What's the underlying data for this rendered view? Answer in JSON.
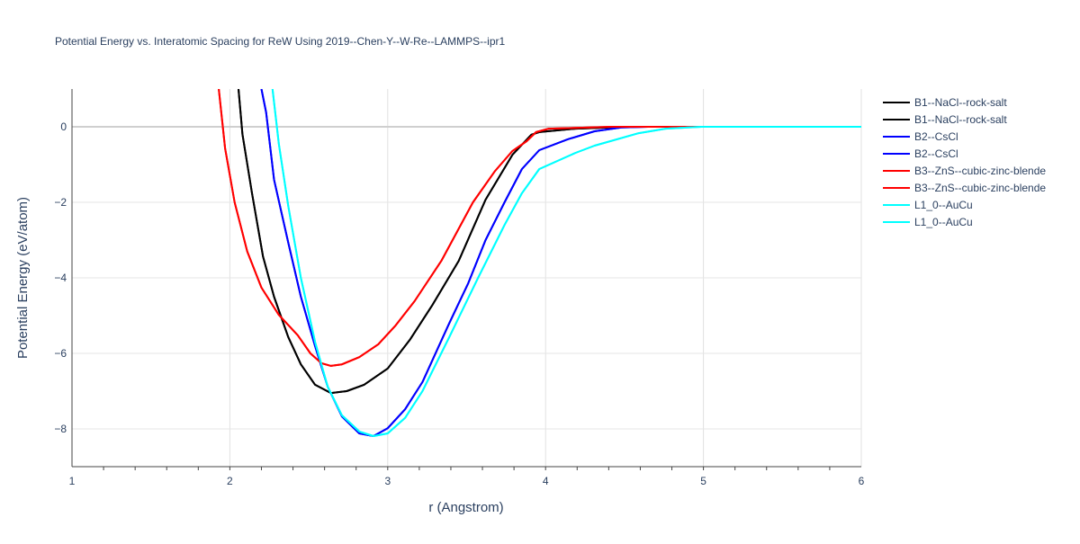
{
  "chart_data": {
    "type": "line",
    "title": "Potential Energy vs. Interatomic Spacing for ReW Using 2019--Chen-Y--W-Re--LAMMPS--ipr1",
    "xlabel": "r (Angstrom)",
    "ylabel": "Potential Energy (eV/atom)",
    "xlim": [
      1,
      6
    ],
    "ylim": [
      -9,
      1
    ],
    "xticks": [
      1,
      2,
      3,
      4,
      5,
      6
    ],
    "yticks": [
      0,
      -2,
      -4,
      -6,
      -8
    ],
    "ytick_labels": [
      "0",
      "−2",
      "−4",
      "−6",
      "−8"
    ],
    "grid": true,
    "legend_position": "right",
    "series": [
      {
        "name": "B1--NaCl--rock-salt",
        "color": "#000000",
        "x": [
          2.055,
          2.08,
          2.14,
          2.21,
          2.28,
          2.37,
          2.45,
          2.54,
          2.64,
          2.74,
          2.85,
          3.0,
          3.14,
          3.28,
          3.45,
          3.62,
          3.79,
          3.91,
          3.96,
          4.19,
          4.53,
          6.0
        ],
        "y": [
          1,
          -0.2,
          -1.76,
          -3.43,
          -4.5,
          -5.57,
          -6.29,
          -6.83,
          -7.05,
          -7.0,
          -6.83,
          -6.4,
          -5.64,
          -4.74,
          -3.55,
          -1.93,
          -0.74,
          -0.21,
          -0.14,
          -0.05,
          0,
          0
        ]
      },
      {
        "name": "B1--NaCl--rock-salt",
        "color": "#000000",
        "x": [
          2.055,
          2.08,
          2.14,
          2.21,
          2.28,
          2.37,
          2.45,
          2.54,
          2.64,
          2.74,
          2.85,
          3.0,
          3.14,
          3.28,
          3.45,
          3.62,
          3.79,
          3.91,
          3.96,
          4.19,
          4.53,
          6.0
        ],
        "y": [
          1,
          -0.2,
          -1.76,
          -3.43,
          -4.5,
          -5.57,
          -6.29,
          -6.83,
          -7.05,
          -7.0,
          -6.83,
          -6.4,
          -5.64,
          -4.74,
          -3.55,
          -1.93,
          -0.74,
          -0.21,
          -0.14,
          -0.05,
          0,
          0
        ]
      },
      {
        "name": "B2--CsCl",
        "color": "#0000ff",
        "x": [
          2.2,
          2.23,
          2.28,
          2.37,
          2.45,
          2.54,
          2.62,
          2.71,
          2.82,
          2.91,
          3.0,
          3.11,
          3.22,
          3.39,
          3.51,
          3.62,
          3.74,
          3.85,
          3.96,
          4.14,
          4.31,
          4.48,
          4.65,
          6.0
        ],
        "y": [
          1,
          0.38,
          -1.4,
          -3.07,
          -4.5,
          -5.81,
          -6.88,
          -7.67,
          -8.12,
          -8.19,
          -7.98,
          -7.48,
          -6.76,
          -5.2,
          -4.14,
          -3.0,
          -2.0,
          -1.12,
          -0.62,
          -0.33,
          -0.12,
          -0.02,
          0,
          0
        ]
      },
      {
        "name": "B2--CsCl",
        "color": "#0000ff",
        "x": [
          2.2,
          2.23,
          2.28,
          2.37,
          2.45,
          2.54,
          2.62,
          2.71,
          2.82,
          2.91,
          3.0,
          3.11,
          3.22,
          3.39,
          3.51,
          3.62,
          3.74,
          3.85,
          3.96,
          4.14,
          4.31,
          4.48,
          4.65,
          6.0
        ],
        "y": [
          1,
          0.38,
          -1.4,
          -3.07,
          -4.5,
          -5.81,
          -6.88,
          -7.67,
          -8.12,
          -8.19,
          -7.98,
          -7.48,
          -6.76,
          -5.2,
          -4.14,
          -3.0,
          -2.0,
          -1.12,
          -0.62,
          -0.33,
          -0.12,
          -0.02,
          0,
          0
        ]
      },
      {
        "name": "B3--ZnS--cubic-zinc-blende",
        "color": "#ff0000",
        "x": [
          1.93,
          1.97,
          2.03,
          2.11,
          2.2,
          2.31,
          2.43,
          2.51,
          2.58,
          2.64,
          2.71,
          2.82,
          2.94,
          3.05,
          3.17,
          3.34,
          3.54,
          3.68,
          3.79,
          3.88,
          3.94,
          4.02,
          4.42,
          6.0
        ],
        "y": [
          1,
          -0.57,
          -2.0,
          -3.3,
          -4.26,
          -4.98,
          -5.52,
          -6.0,
          -6.26,
          -6.33,
          -6.29,
          -6.1,
          -5.76,
          -5.26,
          -4.62,
          -3.55,
          -2.0,
          -1.17,
          -0.64,
          -0.38,
          -0.14,
          -0.05,
          0,
          0
        ]
      },
      {
        "name": "B3--ZnS--cubic-zinc-blende",
        "color": "#ff0000",
        "x": [
          1.93,
          1.97,
          2.03,
          2.11,
          2.2,
          2.31,
          2.43,
          2.51,
          2.58,
          2.64,
          2.71,
          2.82,
          2.94,
          3.05,
          3.17,
          3.34,
          3.54,
          3.68,
          3.79,
          3.88,
          3.94,
          4.02,
          4.42,
          6.0
        ],
        "y": [
          1,
          -0.57,
          -2.0,
          -3.3,
          -4.26,
          -4.98,
          -5.52,
          -6.0,
          -6.26,
          -6.33,
          -6.29,
          -6.1,
          -5.76,
          -5.26,
          -4.62,
          -3.55,
          -2.0,
          -1.17,
          -0.64,
          -0.38,
          -0.14,
          -0.05,
          0,
          0
        ]
      },
      {
        "name": "L1_0--AuCu",
        "color": "#00ffff",
        "x": [
          2.27,
          2.31,
          2.37,
          2.45,
          2.54,
          2.62,
          2.71,
          2.82,
          2.91,
          3.0,
          3.11,
          3.22,
          3.39,
          3.57,
          3.74,
          3.85,
          3.96,
          4.19,
          4.31,
          4.59,
          4.76,
          4.99,
          6.0
        ],
        "y": [
          1,
          -0.45,
          -2.1,
          -4.0,
          -5.7,
          -6.88,
          -7.64,
          -8.07,
          -8.19,
          -8.12,
          -7.71,
          -7.0,
          -5.57,
          -4.02,
          -2.6,
          -1.76,
          -1.12,
          -0.69,
          -0.5,
          -0.17,
          -0.05,
          0,
          0
        ]
      },
      {
        "name": "L1_0--AuCu",
        "color": "#00ffff",
        "x": [
          2.27,
          2.31,
          2.37,
          2.45,
          2.54,
          2.62,
          2.71,
          2.82,
          2.91,
          3.0,
          3.11,
          3.22,
          3.39,
          3.57,
          3.74,
          3.85,
          3.96,
          4.19,
          4.31,
          4.59,
          4.76,
          4.99,
          6.0
        ],
        "y": [
          1,
          -0.45,
          -2.1,
          -4.0,
          -5.7,
          -6.88,
          -7.64,
          -8.07,
          -8.19,
          -8.12,
          -7.71,
          -7.0,
          -5.57,
          -4.02,
          -2.6,
          -1.76,
          -1.12,
          -0.69,
          -0.5,
          -0.17,
          -0.05,
          0,
          0
        ]
      }
    ]
  }
}
